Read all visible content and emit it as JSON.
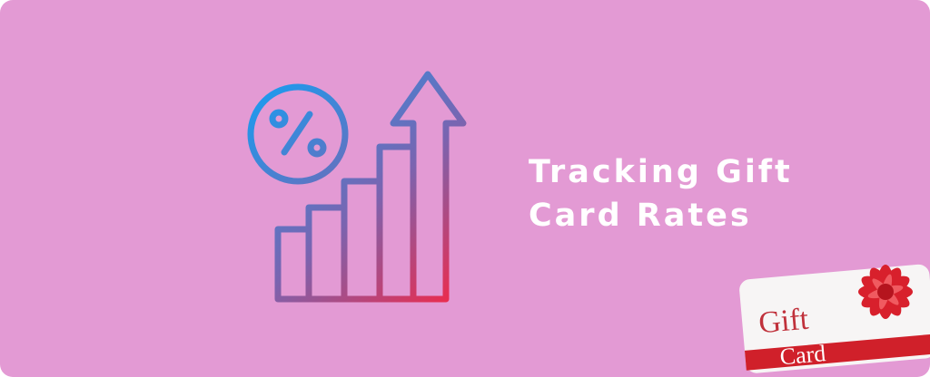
{
  "banner": {
    "title_line1": "Tracking Gift",
    "title_line2": "Card Rates",
    "background_color": "#e39ad4",
    "icon": "growth-chart-percent-icon",
    "icon_gradient": [
      "#1a9cf0",
      "#ee2a4a"
    ],
    "gift_card": {
      "word1": "Gift",
      "word2": "Card",
      "ribbon_color": "#d0202a"
    }
  }
}
